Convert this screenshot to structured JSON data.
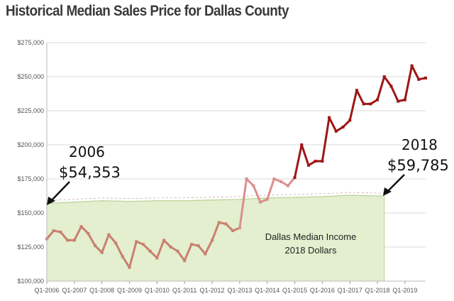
{
  "title": "Historical Median Sales Price for Dallas County",
  "colors": {
    "line_early": "#c9806e",
    "line_mid": "#d98f8f",
    "line_late": "#9e1616",
    "income_fill": "#e3efcf",
    "income_stroke": "#bcd39a",
    "grid": "#d9d9d9"
  },
  "chart_data": {
    "type": "line",
    "title": "Historical Median Sales Price for Dallas County",
    "ylim": [
      100000,
      275000
    ],
    "yticks": [
      100000,
      125000,
      150000,
      175000,
      200000,
      225000,
      250000,
      275000
    ],
    "ytick_labels": [
      "$100,000",
      "$125,000",
      "$150,000",
      "$175,000",
      "$200,000",
      "$225,000",
      "$250,000",
      "$275,000"
    ],
    "xlim": [
      2006.0,
      2019.75
    ],
    "xticks": [
      2006,
      2007,
      2008,
      2009,
      2010,
      2011,
      2012,
      2013,
      2014,
      2015,
      2016,
      2017,
      2018,
      2019
    ],
    "xtick_labels": [
      "Q1-2006",
      "Q1-2007",
      "Q1-2008",
      "Q1-2009",
      "Q1-2010",
      "Q1-2011",
      "Q1-2012",
      "Q1-2013",
      "Q1-2014",
      "Q1-2015",
      "Q1-2016",
      "Q1-2017",
      "Q1-2018",
      "Q1-2019"
    ],
    "series": [
      {
        "name": "Median Sales Price",
        "x": [
          2006.0,
          2006.25,
          2006.5,
          2006.75,
          2007.0,
          2007.25,
          2007.5,
          2007.75,
          2008.0,
          2008.25,
          2008.5,
          2008.75,
          2009.0,
          2009.25,
          2009.5,
          2009.75,
          2010.0,
          2010.25,
          2010.5,
          2010.75,
          2011.0,
          2011.25,
          2011.5,
          2011.75,
          2012.0,
          2012.25,
          2012.5,
          2012.75,
          2013.0,
          2013.25,
          2013.5,
          2013.75,
          2014.0,
          2014.25,
          2014.5,
          2014.75,
          2015.0,
          2015.25,
          2015.5,
          2015.75,
          2016.0,
          2016.25,
          2016.5,
          2016.75,
          2017.0,
          2017.25,
          2017.5,
          2017.75,
          2018.0,
          2018.25,
          2018.5,
          2018.75,
          2019.0,
          2019.25,
          2019.5,
          2019.75
        ],
        "values": [
          131000,
          137000,
          136000,
          130000,
          130000,
          140000,
          135000,
          126000,
          121000,
          134000,
          128000,
          118000,
          110000,
          129000,
          127000,
          122000,
          117000,
          130000,
          125000,
          122000,
          115000,
          127000,
          126000,
          120000,
          130000,
          143000,
          142000,
          137000,
          139000,
          175000,
          170000,
          158000,
          160000,
          175000,
          173000,
          170000,
          176000,
          200000,
          185000,
          188000,
          188000,
          220000,
          210000,
          213000,
          218000,
          240000,
          230000,
          230000,
          233000,
          250000,
          243000,
          232000,
          233000,
          258000,
          248000,
          249000
        ]
      },
      {
        "name": "Dallas Median Income 2018 Dollars",
        "type": "area",
        "x": [
          2006.0,
          2007.0,
          2008.0,
          2009.0,
          2010.0,
          2011.0,
          2012.0,
          2013.0,
          2014.0,
          2015.0,
          2016.0,
          2017.0,
          2018.0,
          2018.25
        ],
        "values": [
          157000,
          158000,
          159000,
          158500,
          159000,
          159000,
          159500,
          160000,
          161000,
          161500,
          162000,
          163000,
          162500,
          162500
        ]
      }
    ],
    "annotations": {
      "start_year": "2006",
      "start_value": "$54,353",
      "end_year": "2018",
      "end_value": "$59,785",
      "income_label_line1": "Dallas Median Income",
      "income_label_line2": "2018 Dollars"
    }
  }
}
